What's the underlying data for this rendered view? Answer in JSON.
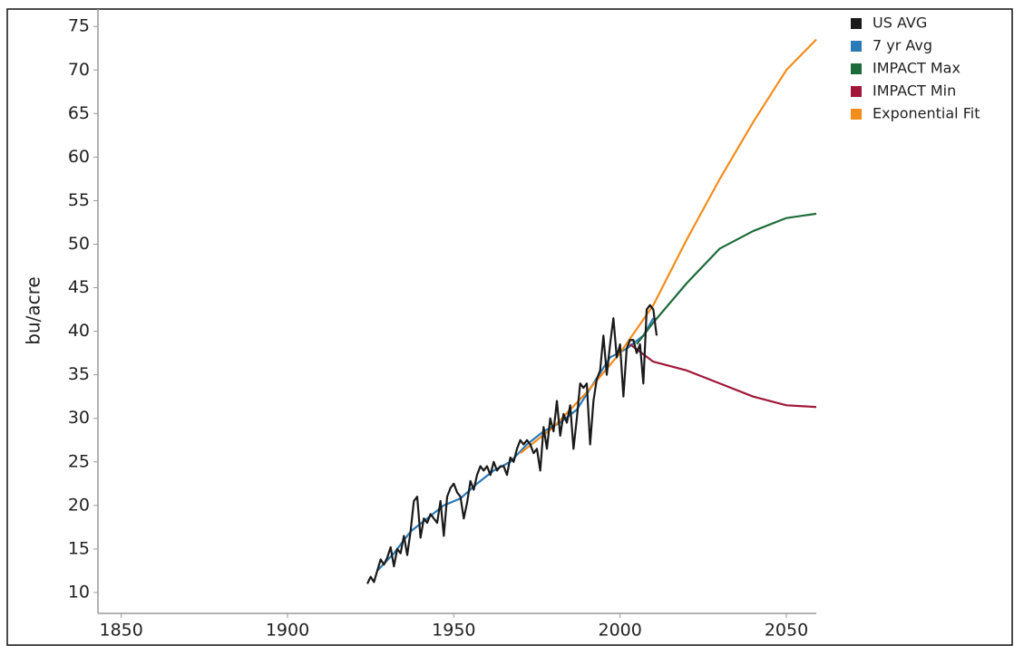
{
  "chart_data": {
    "type": "line",
    "y_label": "bu/acre",
    "xlim": [
      1843,
      2059
    ],
    "ylim": [
      7.6,
      77
    ],
    "xticks": [
      1850,
      1900,
      1950,
      2000,
      2050
    ],
    "yticks": [
      10,
      15,
      20,
      25,
      30,
      35,
      40,
      45,
      50,
      55,
      60,
      65,
      70,
      75
    ],
    "legend": "right",
    "series": [
      {
        "name": "US AVG",
        "color": "#1a1a1a",
        "x": [
          1924,
          1925,
          1926,
          1927,
          1928,
          1929,
          1930,
          1931,
          1932,
          1933,
          1934,
          1935,
          1936,
          1937,
          1938,
          1939,
          1940,
          1941,
          1942,
          1943,
          1944,
          1945,
          1946,
          1947,
          1948,
          1949,
          1950,
          1951,
          1952,
          1953,
          1954,
          1955,
          1956,
          1957,
          1958,
          1959,
          1960,
          1961,
          1962,
          1963,
          1964,
          1965,
          1966,
          1967,
          1968,
          1969,
          1970,
          1971,
          1972,
          1973,
          1974,
          1975,
          1976,
          1977,
          1978,
          1979,
          1980,
          1981,
          1982,
          1983,
          1984,
          1985,
          1986,
          1987,
          1988,
          1989,
          1990,
          1991,
          1992,
          1993,
          1994,
          1995,
          1996,
          1997,
          1998,
          1999,
          2000,
          2001,
          2002,
          2003,
          2004,
          2005,
          2006,
          2007,
          2008,
          2009,
          2010,
          2011
        ],
        "values": [
          11,
          11.8,
          11.2,
          12.5,
          13.8,
          13.2,
          14,
          15.2,
          13,
          15,
          14.5,
          16.5,
          14.3,
          17,
          20.5,
          21,
          16.3,
          18.5,
          18,
          19,
          18.5,
          18,
          20.5,
          16.5,
          21,
          22,
          22.5,
          21.5,
          21,
          18.5,
          20.3,
          22.8,
          21.8,
          23.5,
          24.5,
          24,
          24.5,
          23.5,
          25,
          24,
          24.5,
          24.5,
          23.5,
          25.5,
          25,
          26.5,
          27.5,
          27,
          27.5,
          27,
          26,
          26.5,
          24,
          29,
          26.5,
          30,
          28.5,
          32,
          28,
          30.5,
          29.5,
          31.5,
          26.5,
          30,
          34,
          33.5,
          34,
          27,
          32,
          34.5,
          35.5,
          39.5,
          35,
          38.5,
          41.5,
          37,
          38.5,
          32.5,
          38,
          39,
          39,
          37.5,
          38.5,
          34,
          42.5,
          43,
          42.5,
          39.5
        ]
      },
      {
        "name": "7 yr Avg",
        "color": "#2a7ab8",
        "x": [
          1927,
          1932,
          1937,
          1942,
          1947,
          1952,
          1957,
          1962,
          1967,
          1972,
          1977,
          1982,
          1987,
          1992,
          1997,
          2002,
          2007,
          2010
        ],
        "values": [
          12.5,
          14.5,
          17,
          18.5,
          20,
          20.8,
          22.5,
          24,
          25,
          27,
          28.5,
          29.5,
          31,
          34,
          37,
          38,
          39.5,
          41.5
        ]
      },
      {
        "name": "IMPACT Max",
        "color": "#1e6b3a",
        "x": [
          2005,
          2010,
          2020,
          2030,
          2040,
          2050,
          2059
        ],
        "values": [
          38.5,
          41,
          45.5,
          49.5,
          51.5,
          53,
          53.5
        ]
      },
      {
        "name": "IMPACT Min",
        "color": "#a0173a",
        "x": [
          2003,
          2010,
          2020,
          2030,
          2040,
          2050,
          2059
        ],
        "values": [
          38.5,
          36.5,
          35.5,
          34,
          32.5,
          31.5,
          31.3
        ]
      },
      {
        "name": "Exponential Fit",
        "color": "#f28c1c",
        "x": [
          1970,
          1980,
          1990,
          2000,
          2010,
          2020,
          2030,
          2040,
          2050,
          2059
        ],
        "values": [
          26,
          29,
          33,
          37.5,
          43,
          50.5,
          57.5,
          64,
          70,
          73.5
        ]
      }
    ]
  }
}
